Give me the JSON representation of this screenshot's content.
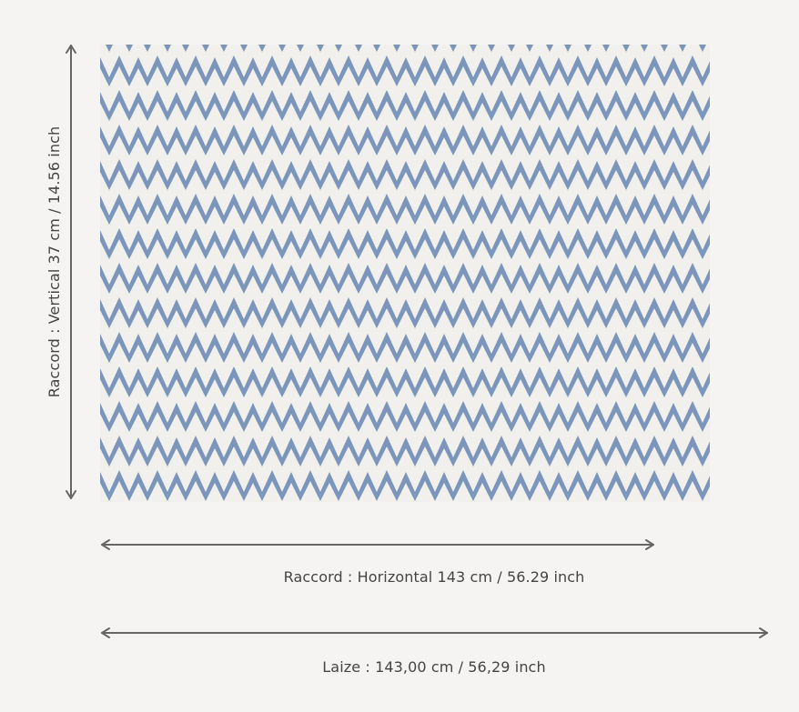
{
  "labels": {
    "vertical_repeat": "Raccord : Vertical 37 cm / 14.56 inch",
    "horizontal_repeat": "Raccord : Horizontal 143 cm / 56.29 inch",
    "width": "Laize : 143,00 cm / 56,29 inch"
  },
  "colors": {
    "background": "#f5f4f2",
    "pattern_blue": "#7b95bb",
    "pattern_white": "#f1f0ec",
    "arrow": "#666666",
    "text": "#444444"
  },
  "swatch": {
    "pattern": "zigzag chevron"
  }
}
